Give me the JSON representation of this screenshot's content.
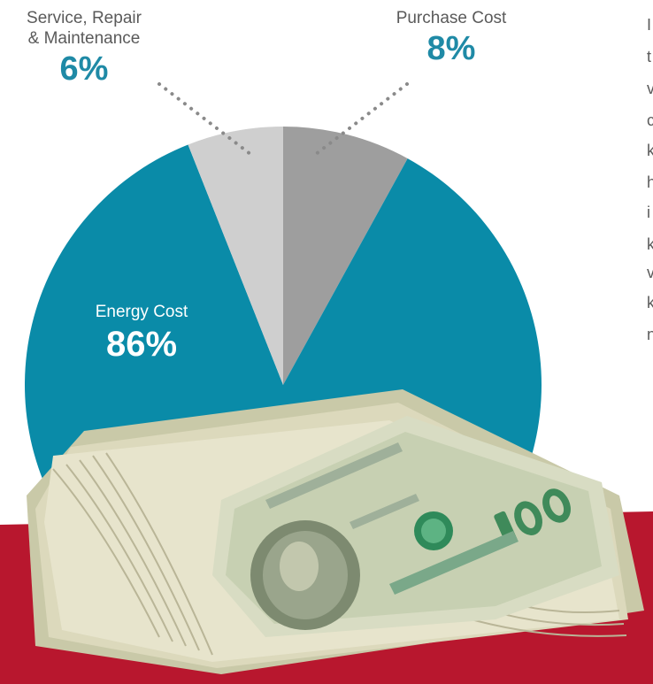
{
  "chart_data": {
    "type": "pie",
    "slices": [
      {
        "label": "Purchase Cost",
        "value": 8,
        "value_text": "8%",
        "color": "#9e9e9e"
      },
      {
        "label": "Energy Cost",
        "value": 86,
        "value_text": "86%",
        "color": "#0a8ba8"
      },
      {
        "label": "Service, Repair & Maintenance",
        "value": 6,
        "value_text": "6%",
        "color": "#cfcfcf"
      }
    ],
    "labels": {
      "service": [
        "Service, Repair",
        "& Maintenance"
      ]
    },
    "start_angle_deg": 0,
    "direction": "clockwise"
  },
  "colors": {
    "accent": "#1f8aa6",
    "banner": "#b8172e",
    "leader_dots": "#8a8a8a"
  },
  "side_text_fragments": [
    "I",
    "t",
    "v",
    "c",
    "k",
    "h",
    "i",
    "k",
    "v",
    "k",
    "n"
  ],
  "image": {
    "subject": "stack-of-hundred-dollar-bills"
  }
}
